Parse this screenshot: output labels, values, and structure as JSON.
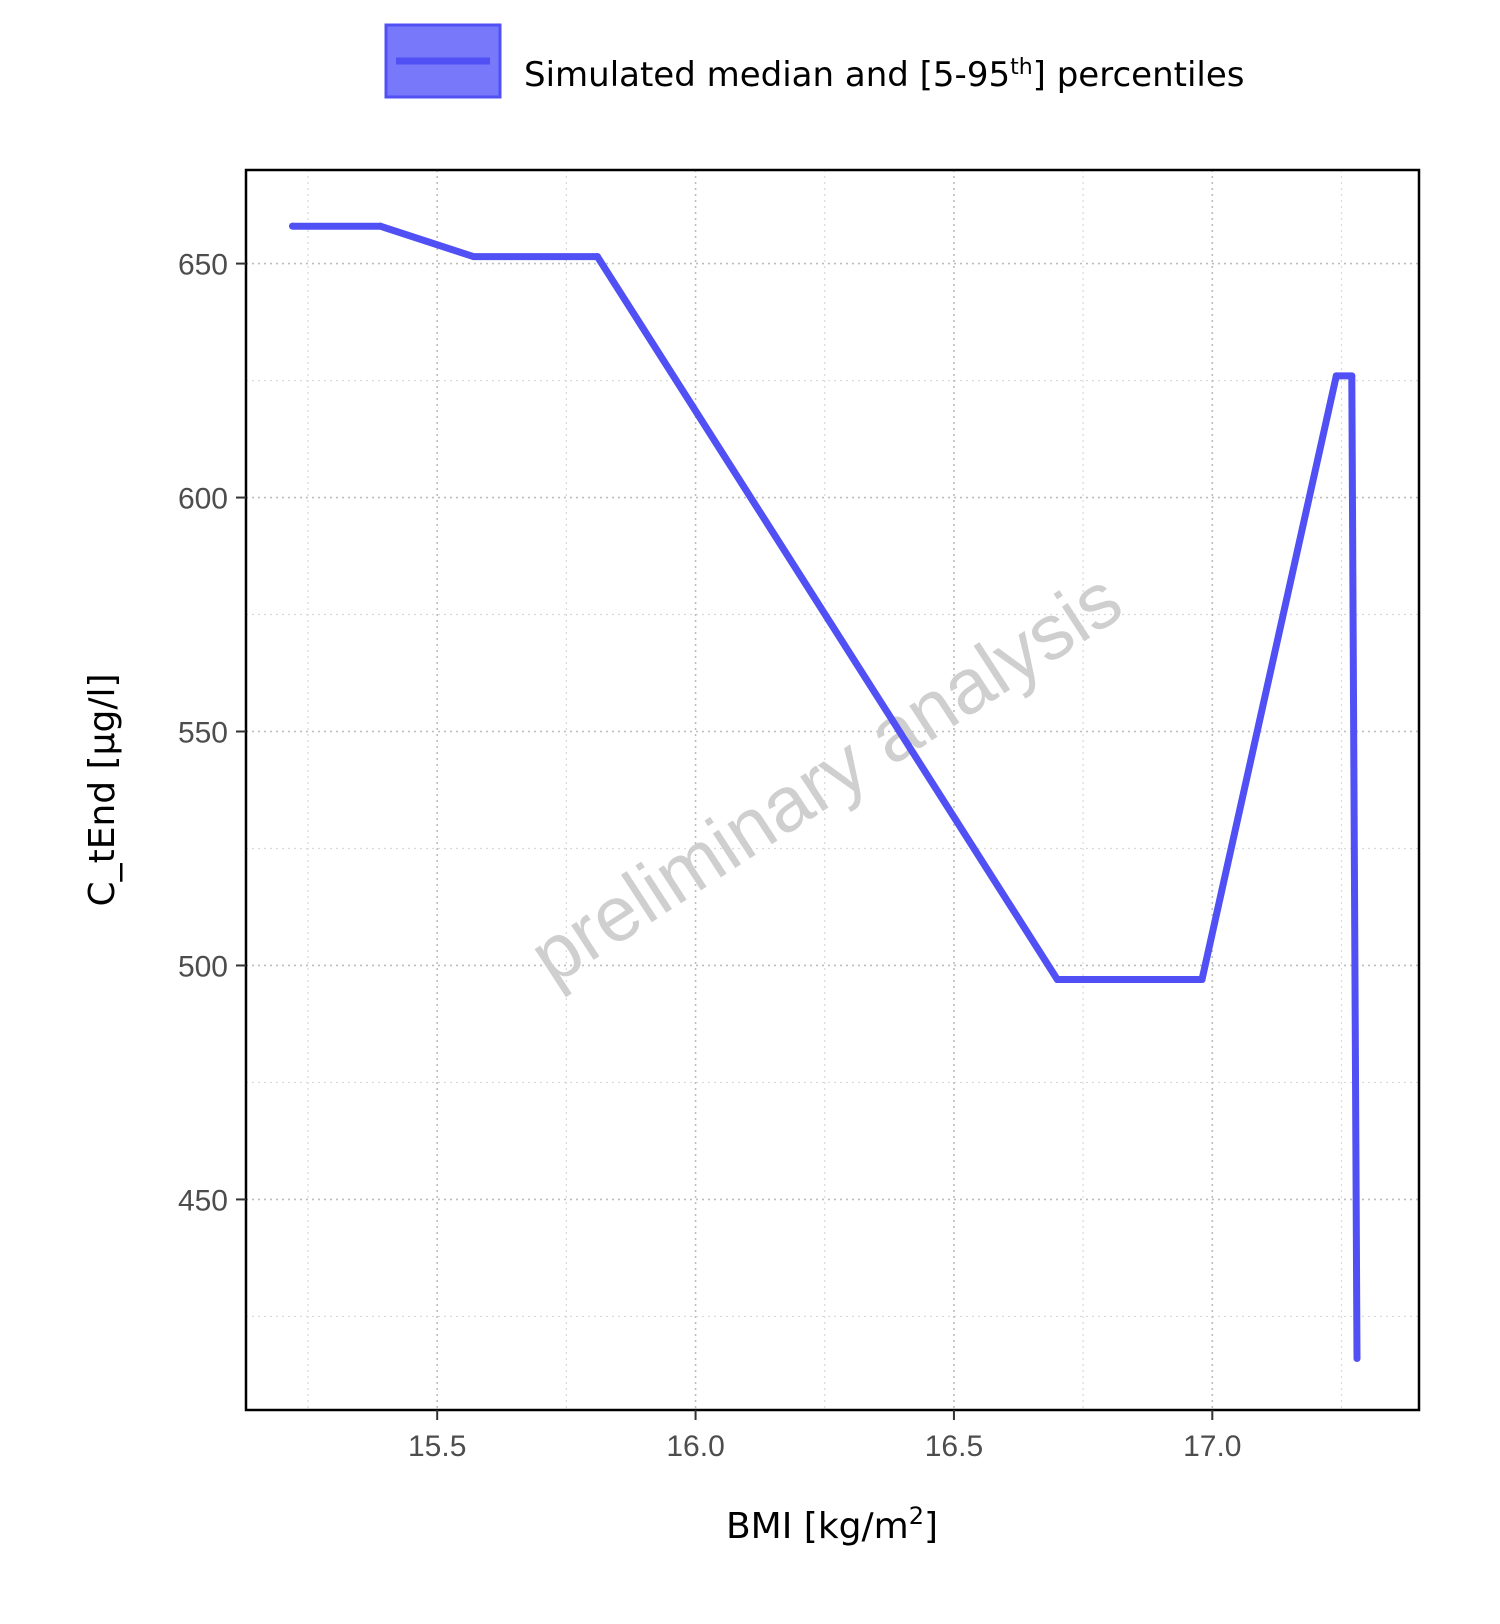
{
  "chart_data": {
    "type": "line",
    "xlabel": "BMI [kg/m²]",
    "ylabel": "C_tEnd [µg/l]",
    "xlim": [
      15.13,
      17.4
    ],
    "ylim": [
      405,
      670
    ],
    "x_ticks": [
      15.5,
      16.0,
      16.5,
      17.0
    ],
    "x_tick_labels": [
      "15.5",
      "16.0",
      "16.5",
      "17.0"
    ],
    "y_ticks": [
      450,
      500,
      550,
      600,
      650
    ],
    "y_tick_labels": [
      "450",
      "500",
      "550",
      "600",
      "650"
    ],
    "grid": true,
    "legend_position": "top",
    "legend_label": "Simulated median and [5-95th] percentiles",
    "watermark": "preliminary analysis",
    "line_color": "#5050f5",
    "series": [
      {
        "x": [
          15.22,
          15.39,
          15.57,
          15.81,
          16.7,
          16.98,
          17.24,
          17.27,
          17.28
        ],
        "y": [
          658,
          658,
          651.5,
          651.5,
          497,
          497,
          626,
          626,
          416
        ]
      }
    ]
  }
}
